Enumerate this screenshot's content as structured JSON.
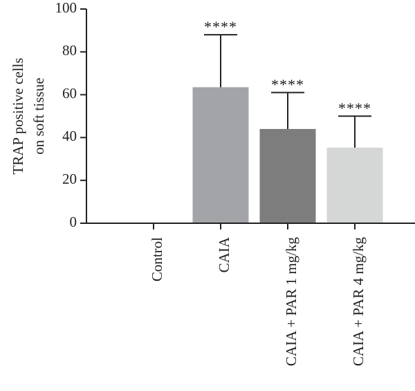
{
  "chart_data": {
    "type": "bar",
    "title": "",
    "xlabel": "",
    "ylabel": [
      "TRAP positive cells",
      "on soft tissue"
    ],
    "ylim": [
      0,
      100
    ],
    "yticks": [
      0,
      20,
      40,
      60,
      80,
      100
    ],
    "categories": [
      "Control",
      "CAIA",
      "CAIA + PAR 1 mg/kg",
      "CAIA + PAR 4 mg/kg"
    ],
    "values": [
      0,
      63.5,
      44,
      35.3
    ],
    "error_upper": [
      0,
      88,
      61,
      50
    ],
    "significance": [
      "",
      "****",
      "****",
      "****"
    ],
    "colors": [
      "#ffffff",
      "#a3a4a8",
      "#7c7d7c",
      "#d5d6d6"
    ],
    "grid": false,
    "legend": "none"
  }
}
